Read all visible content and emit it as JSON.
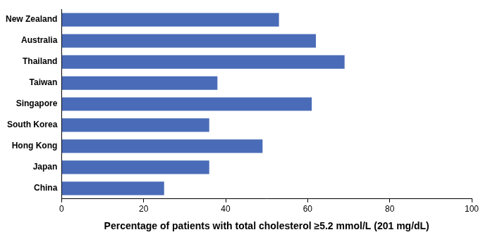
{
  "chart_data": {
    "type": "bar",
    "orientation": "horizontal",
    "x_label": "Percentage of patients with total cholesterol ≥5.2 mmol/L (201 mg/dL)",
    "categories": [
      "New Zealand",
      "Australia",
      "Thailand",
      "Taiwan",
      "Singapore",
      "South Korea",
      "Hong Kong",
      "Japan",
      "China"
    ],
    "values": [
      53,
      62,
      69,
      38,
      61,
      36,
      49,
      36,
      25
    ],
    "color": "#4a6cb8",
    "xlim": [
      0,
      100
    ],
    "xticks": [
      0,
      20,
      40,
      60,
      80,
      100
    ],
    "grid": false
  }
}
